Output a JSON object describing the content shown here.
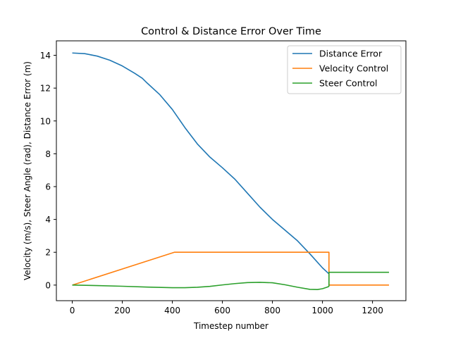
{
  "chart_data": {
    "type": "line",
    "title": "Control & Distance Error Over Time",
    "xlabel": "Timestep number",
    "ylabel": "Velocity (m/s), Steer Angle (rad), Distance Error (m)",
    "xlim": [
      -63.5,
      1333.5
    ],
    "ylim": [
      -0.95,
      14.88
    ],
    "x_ticks": [
      0,
      200,
      400,
      600,
      800,
      1000,
      1200
    ],
    "x_tick_labels": [
      "0",
      "200",
      "400",
      "600",
      "800",
      "1000",
      "1200"
    ],
    "y_ticks": [
      0,
      2,
      4,
      6,
      8,
      10,
      12,
      14
    ],
    "y_tick_labels": [
      "0",
      "2",
      "4",
      "6",
      "8",
      "10",
      "12",
      "14"
    ],
    "grid": false,
    "legend": {
      "position": "top-right",
      "entries": [
        "Distance Error",
        "Velocity Control",
        "Steer Control"
      ]
    },
    "series": [
      {
        "name": "Distance Error",
        "color": "#1f77b4",
        "x": [
          0,
          50,
          100,
          150,
          200,
          250,
          280,
          300,
          350,
          400,
          450,
          500,
          550,
          600,
          650,
          700,
          750,
          800,
          850,
          900,
          950,
          1000,
          1025
        ],
        "y": [
          14.14,
          14.1,
          13.95,
          13.7,
          13.35,
          12.9,
          12.6,
          12.3,
          11.6,
          10.7,
          9.6,
          8.6,
          7.8,
          7.15,
          6.45,
          5.6,
          4.75,
          4.0,
          3.35,
          2.7,
          1.9,
          1.05,
          0.7
        ]
      },
      {
        "name": "Velocity Control",
        "color": "#ff7f0e",
        "x": [
          0,
          408,
          1026,
          1026.01,
          1266
        ],
        "y": [
          0,
          2.0,
          2.0,
          0,
          0
        ]
      },
      {
        "name": "Steer Control",
        "color": "#2ca02c",
        "x": [
          0,
          100,
          200,
          300,
          400,
          450,
          500,
          550,
          600,
          650,
          700,
          750,
          800,
          850,
          900,
          950,
          980,
          1000,
          1020,
          1026,
          1026.01,
          1266
        ],
        "y": [
          0.0,
          -0.03,
          -0.07,
          -0.12,
          -0.16,
          -0.16,
          -0.13,
          -0.08,
          0.01,
          0.09,
          0.15,
          0.17,
          0.14,
          0.02,
          -0.13,
          -0.26,
          -0.27,
          -0.22,
          -0.12,
          -0.07,
          0.78,
          0.78
        ]
      }
    ]
  }
}
